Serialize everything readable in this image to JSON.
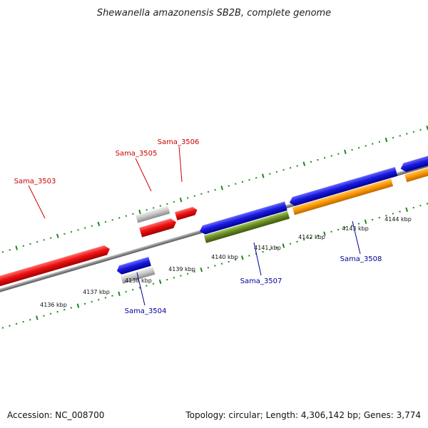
{
  "title": "Shewanella amazonensis SB2B, complete genome",
  "footer": {
    "accession": "Accession: NC_008700",
    "summary": "Topology: circular; Length: 4,306,142 bp; Genes: 3,774"
  },
  "colors": {
    "forward_strand_genes": "#ee1111",
    "reverse_strand_genes": "#1a1ae0",
    "grey_feature": "#c8c8c8",
    "olive_feature": "#6b8e23",
    "orange_feature": "#ff9900",
    "tick_marks": "#1a8a1a",
    "backbone": "#8a8a8a",
    "forward_label": "#cc0000",
    "reverse_label": "#000099"
  },
  "tick_labels": [
    "4136 kbp",
    "4137 kbp",
    "4138 kbp",
    "4139 kbp",
    "4140 kbp",
    "4141 kbp",
    "4142 kbp",
    "4143 kbp",
    "4144 kbp"
  ],
  "gene_labels": {
    "forward": [
      "Sama_3503",
      "Sama_3505",
      "Sama_3506"
    ],
    "reverse": [
      "Sama_3504",
      "Sama_3507",
      "Sama_3508"
    ]
  }
}
